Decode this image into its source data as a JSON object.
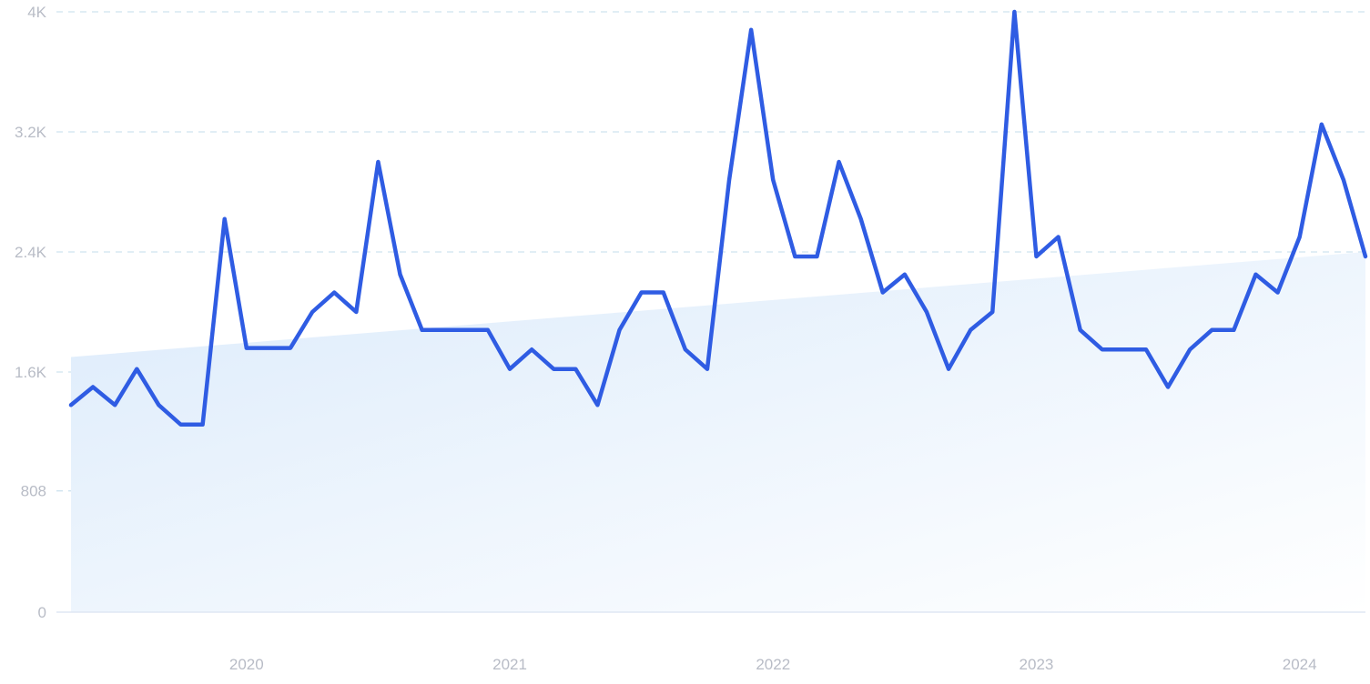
{
  "chart_data": {
    "type": "line",
    "title": "",
    "xlabel": "",
    "ylabel": "",
    "grid": true,
    "legend": "none",
    "colors": {
      "line": "#2f5ce3",
      "trend_fill_start": "#dcebfb",
      "trend_fill_end": "#ffffff",
      "grid": "#cfe3ef",
      "tick_text": "#b8bcc6"
    },
    "x_start": "2019-05",
    "x_range": [
      "2019-05",
      "2024-04"
    ],
    "x_ticks": [
      {
        "value": "2020-01",
        "label": "2020"
      },
      {
        "value": "2021-01",
        "label": "2021"
      },
      {
        "value": "2022-01",
        "label": "2022"
      },
      {
        "value": "2023-01",
        "label": "2023"
      },
      {
        "value": "2024-01",
        "label": "2024"
      }
    ],
    "ylim": [
      0,
      4000
    ],
    "y_ticks": [
      {
        "value": 0,
        "label": "0"
      },
      {
        "value": 808,
        "label": "808"
      },
      {
        "value": 1600,
        "label": "1.6K"
      },
      {
        "value": 2400,
        "label": "2.4K"
      },
      {
        "value": 3200,
        "label": "3.2K"
      },
      {
        "value": 4000,
        "label": "4K"
      }
    ],
    "series": [
      {
        "values": [
          1380,
          1500,
          1380,
          1620,
          1380,
          1250,
          1250,
          2620,
          1760,
          1760,
          1760,
          2000,
          2130,
          2000,
          3000,
          2250,
          1880,
          1880,
          1880,
          1880,
          1620,
          1750,
          1620,
          1620,
          1380,
          1880,
          2130,
          2130,
          1750,
          1620,
          2880,
          3880,
          2880,
          2370,
          2370,
          3000,
          2620,
          2130,
          2250,
          2000,
          1620,
          1880,
          2000,
          4000,
          2370,
          2500,
          1880,
          1750,
          1750,
          1750,
          1500,
          1750,
          1880,
          1880,
          2250,
          2130,
          2500,
          3250,
          2880,
          2370
        ]
      }
    ],
    "trend": {
      "start": 1700,
      "end": 2400
    }
  }
}
